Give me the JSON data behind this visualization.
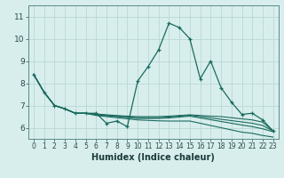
{
  "xlabel": "Humidex (Indice chaleur)",
  "bg_color": "#d8eeed",
  "grid_color": "#b8d8d5",
  "line_color": "#1a6b5e",
  "xlim": [
    -0.5,
    23.5
  ],
  "ylim": [
    5.5,
    11.5
  ],
  "xticks": [
    0,
    1,
    2,
    3,
    4,
    5,
    6,
    7,
    8,
    9,
    10,
    11,
    12,
    13,
    14,
    15,
    16,
    17,
    18,
    19,
    20,
    21,
    22,
    23
  ],
  "yticks": [
    6,
    7,
    8,
    9,
    10,
    11
  ],
  "series_main": [
    8.4,
    7.6,
    7.0,
    6.85,
    6.65,
    6.65,
    6.65,
    6.2,
    6.3,
    6.05,
    8.1,
    8.75,
    9.5,
    10.7,
    10.5,
    10.0,
    8.2,
    9.0,
    7.8,
    7.15,
    6.6,
    6.65,
    6.35,
    5.85
  ],
  "trend1": [
    8.4,
    7.6,
    7.0,
    6.85,
    6.65,
    6.65,
    6.62,
    6.58,
    6.55,
    6.52,
    6.5,
    6.5,
    6.5,
    6.52,
    6.55,
    6.58,
    6.55,
    6.52,
    6.5,
    6.45,
    6.4,
    6.35,
    6.25,
    5.85
  ],
  "trend2": [
    8.4,
    7.6,
    7.0,
    6.85,
    6.65,
    6.65,
    6.6,
    6.56,
    6.52,
    6.48,
    6.45,
    6.45,
    6.45,
    6.48,
    6.52,
    6.56,
    6.5,
    6.44,
    6.38,
    6.32,
    6.26,
    6.2,
    6.1,
    5.85
  ],
  "trend3": [
    8.4,
    7.6,
    7.0,
    6.85,
    6.65,
    6.65,
    6.58,
    6.54,
    6.5,
    6.46,
    6.42,
    6.42,
    6.42,
    6.44,
    6.48,
    6.52,
    6.44,
    6.36,
    6.28,
    6.2,
    6.12,
    6.05,
    5.95,
    5.82
  ],
  "trend_long": [
    8.4,
    7.6,
    7.0,
    6.85,
    6.65,
    6.65,
    6.55,
    6.5,
    6.45,
    6.4,
    6.35,
    6.33,
    6.31,
    6.3,
    6.3,
    6.3,
    6.2,
    6.1,
    6.0,
    5.9,
    5.8,
    5.75,
    5.65,
    5.58
  ]
}
